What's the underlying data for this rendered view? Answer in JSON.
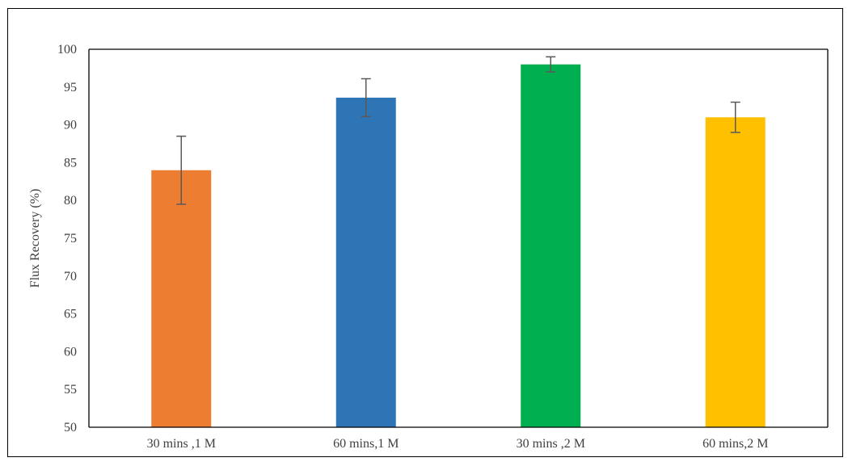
{
  "chart_data": {
    "type": "bar",
    "title": "",
    "xlabel": "",
    "ylabel": "Flux Recovery (%)",
    "ylim": [
      50,
      100
    ],
    "y_ticks": [
      50,
      55,
      60,
      65,
      70,
      75,
      80,
      85,
      90,
      95,
      100
    ],
    "grid": false,
    "legend": "none",
    "categories": [
      "30 mins ,1 M",
      "60 mins,1 M",
      "30 mins ,2 M",
      "60 mins,2 M"
    ],
    "values": [
      84.0,
      93.6,
      98.0,
      91.0
    ],
    "error": [
      4.5,
      2.5,
      1.0,
      2.0
    ],
    "colors": [
      "#ED7D31",
      "#2E75B6",
      "#00B050",
      "#FFC000"
    ],
    "error_bar_color": "#595959",
    "axis_color": "#000000"
  }
}
